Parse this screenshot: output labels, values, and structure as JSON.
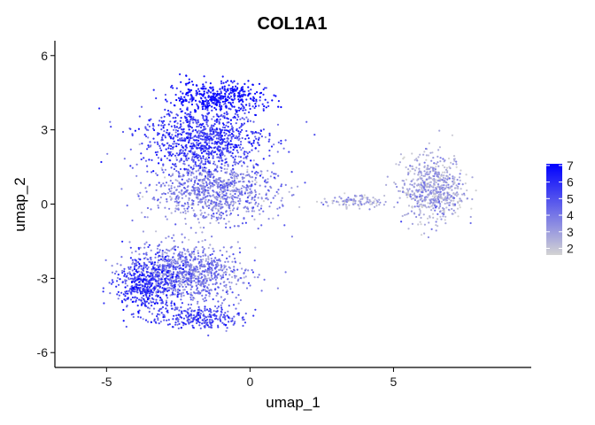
{
  "chart_data": {
    "type": "scatter",
    "title": "COL1A1",
    "xlabel": "umap_1",
    "ylabel": "umap_2",
    "xlim": [
      -6.8,
      9.8
    ],
    "ylim": [
      -6.6,
      6.6
    ],
    "x_ticks": [
      -5,
      0,
      5
    ],
    "x_tick_labels": [
      "-5",
      "0",
      "5"
    ],
    "y_ticks": [
      -6,
      -3,
      0,
      3,
      6
    ],
    "y_tick_labels": [
      "-6",
      "-3",
      "0",
      "3",
      "6"
    ],
    "grid": false,
    "legend": {
      "placement": "right",
      "type": "colorbar",
      "min": 1.6,
      "max": 7.1,
      "ticks": [
        2,
        3,
        4,
        5,
        6,
        7
      ],
      "tick_labels": [
        "2",
        "3",
        "4",
        "5",
        "6",
        "7"
      ]
    },
    "color_low": "#d3d3d3",
    "color_high": "#0000ff",
    "clusters": [
      {
        "region": "upper-left lobe top cap",
        "center": [
          -1.2,
          4.3
        ],
        "spread": [
          1.4,
          0.55
        ],
        "n_points": 450,
        "expression_mean": 6.4
      },
      {
        "region": "upper-left lobe",
        "center": [
          -1.6,
          2.6
        ],
        "spread": [
          1.8,
          1.0
        ],
        "n_points": 900,
        "expression_mean": 5.3
      },
      {
        "region": "left lobe middle",
        "center": [
          -1.3,
          0.5
        ],
        "spread": [
          1.8,
          1.0
        ],
        "n_points": 900,
        "expression_mean": 3.6
      },
      {
        "region": "lower-left lobe",
        "center": [
          -2.2,
          -2.8
        ],
        "spread": [
          1.6,
          1.0
        ],
        "n_points": 900,
        "expression_mean": 3.8
      },
      {
        "region": "lower-left outer edge",
        "center": [
          -3.6,
          -3.3
        ],
        "spread": [
          0.9,
          1.0
        ],
        "n_points": 450,
        "expression_mean": 5.6
      },
      {
        "region": "lower lobe bottom",
        "center": [
          -1.6,
          -4.6
        ],
        "spread": [
          1.2,
          0.4
        ],
        "n_points": 260,
        "expression_mean": 5.0
      },
      {
        "region": "bridge",
        "center": [
          3.6,
          0.1
        ],
        "spread": [
          0.9,
          0.2
        ],
        "n_points": 110,
        "expression_mean": 2.4
      },
      {
        "region": "right cluster",
        "center": [
          6.4,
          0.6
        ],
        "spread": [
          0.9,
          1.1
        ],
        "n_points": 650,
        "expression_mean": 2.6
      }
    ]
  }
}
